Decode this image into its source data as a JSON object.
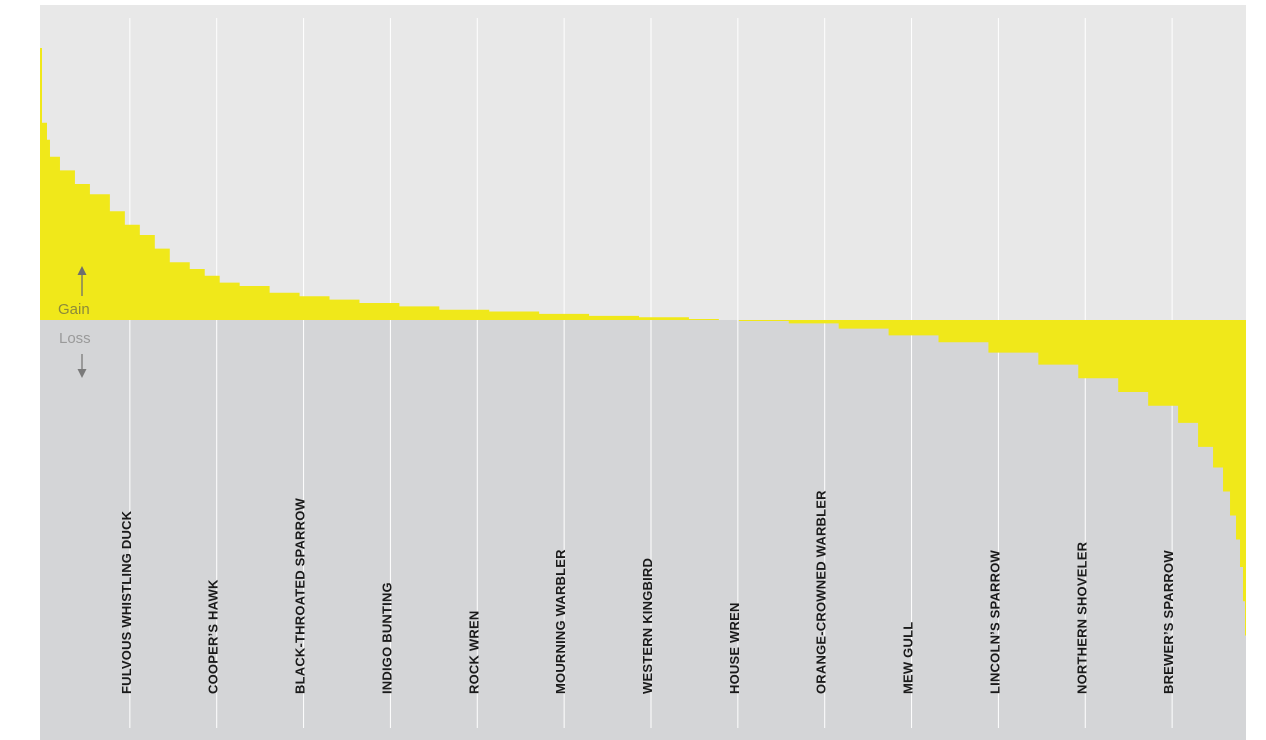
{
  "chart_data": {
    "type": "area",
    "gain_label": "Gain",
    "loss_label": "Loss",
    "ylim": [
      -100,
      80
    ],
    "colors": {
      "gain_bg": "#e8e8e8",
      "loss_bg": "#d4d5d7",
      "fill": "#f0e81a",
      "gridline": "#ffffff",
      "gain_text": "#8c8a3a",
      "loss_text": "#9a9a9a",
      "label_text": "#1a1a1a"
    },
    "species_labels": [
      {
        "rank": 90,
        "name": "FULVOUS WHISTLING DUCK"
      },
      {
        "rank": 177,
        "name": "COOPER’S HAWK"
      },
      {
        "rank": 264,
        "name": "BLACK-THROATED SPARROW"
      },
      {
        "rank": 351,
        "name": "INDIGO BUNTING"
      },
      {
        "rank": 438,
        "name": "ROCK WREN"
      },
      {
        "rank": 525,
        "name": "MOURNING WARBLER"
      },
      {
        "rank": 612,
        "name": "WESTERN KINGBIRD"
      },
      {
        "rank": 699,
        "name": "HOUSE WREN"
      },
      {
        "rank": 786,
        "name": "ORANGE-CROWNED WARBLER"
      },
      {
        "rank": 873,
        "name": "MEW GULL"
      },
      {
        "rank": 960,
        "name": "LINCOLN’S SPARROW"
      },
      {
        "rank": 1047,
        "name": "NORTHERN SHOVELER"
      },
      {
        "rank": 1134,
        "name": "BREWER’S SPARROW"
      }
    ],
    "profile": [
      [
        0,
        80
      ],
      [
        2,
        58
      ],
      [
        7,
        53
      ],
      [
        10,
        48
      ],
      [
        20,
        44
      ],
      [
        35,
        40
      ],
      [
        50,
        37
      ],
      [
        70,
        32
      ],
      [
        85,
        28
      ],
      [
        100,
        25
      ],
      [
        115,
        21
      ],
      [
        130,
        17
      ],
      [
        150,
        15
      ],
      [
        165,
        13
      ],
      [
        180,
        11
      ],
      [
        200,
        10
      ],
      [
        230,
        8
      ],
      [
        260,
        7
      ],
      [
        290,
        6
      ],
      [
        320,
        5
      ],
      [
        360,
        4
      ],
      [
        400,
        3
      ],
      [
        450,
        2.5
      ],
      [
        500,
        1.8
      ],
      [
        550,
        1.2
      ],
      [
        600,
        0.8
      ],
      [
        650,
        0.3
      ],
      [
        680,
        0
      ],
      [
        700,
        -0.3
      ],
      [
        750,
        -1
      ],
      [
        800,
        -2.5
      ],
      [
        850,
        -4.5
      ],
      [
        900,
        -6.5
      ],
      [
        950,
        -9.5
      ],
      [
        1000,
        -13
      ],
      [
        1040,
        -17
      ],
      [
        1080,
        -21
      ],
      [
        1110,
        -25
      ],
      [
        1140,
        -30
      ],
      [
        1160,
        -37
      ],
      [
        1175,
        -43
      ],
      [
        1185,
        -50
      ],
      [
        1192,
        -57
      ],
      [
        1198,
        -64
      ],
      [
        1202,
        -72
      ],
      [
        1205,
        -82
      ],
      [
        1207,
        -92
      ],
      [
        1208,
        -100
      ]
    ]
  }
}
